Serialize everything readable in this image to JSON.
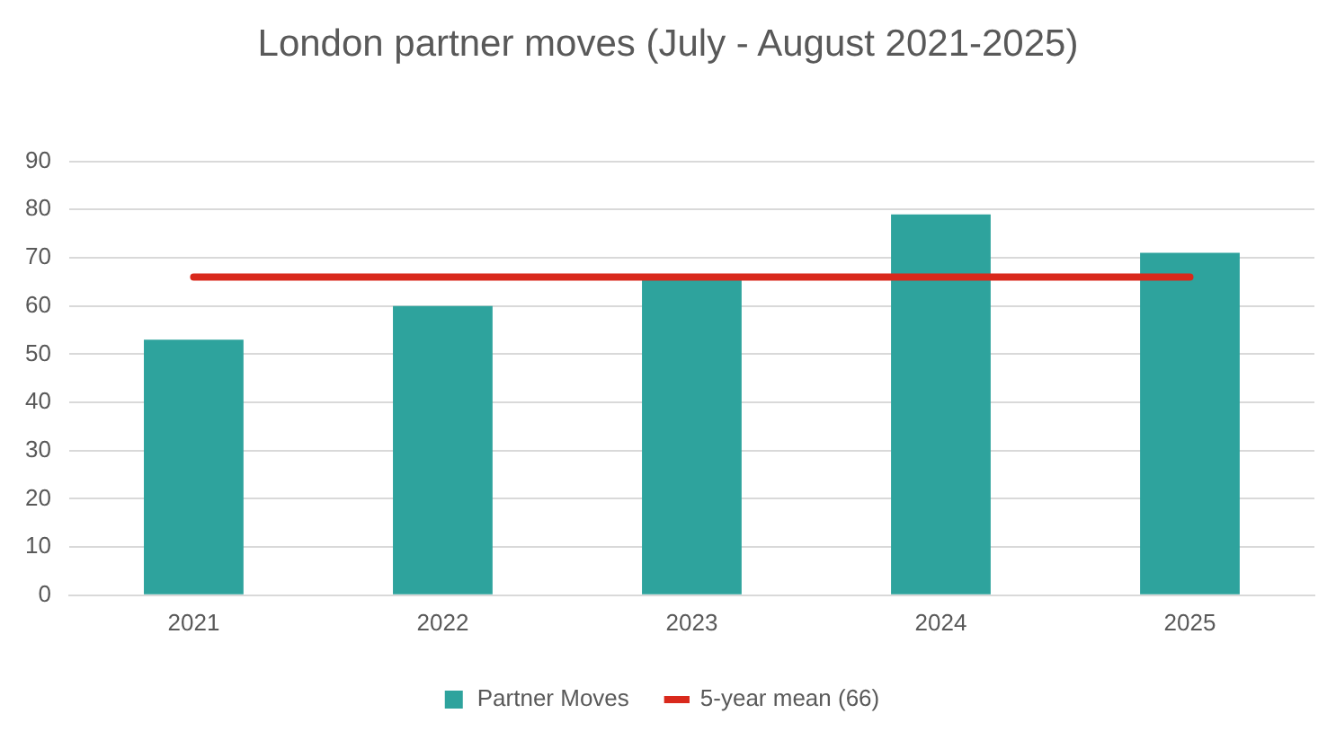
{
  "chart_data": {
    "type": "bar",
    "title": "London partner moves (July - August 2021-2025)",
    "categories": [
      "2021",
      "2022",
      "2023",
      "2024",
      "2025"
    ],
    "series": [
      {
        "name": "Partner Moves",
        "color": "#2ea39d",
        "values": [
          53,
          60,
          66,
          79,
          71
        ]
      },
      {
        "name": "5-year mean (66)",
        "type": "line",
        "color": "#d9291c",
        "values": [
          66,
          66,
          66,
          66,
          66
        ]
      }
    ],
    "ylim": [
      0,
      90
    ],
    "yticks": [
      0,
      10,
      20,
      30,
      40,
      50,
      60,
      70,
      80,
      90
    ],
    "grid": "y",
    "legend": "bottom",
    "marker": "none"
  }
}
